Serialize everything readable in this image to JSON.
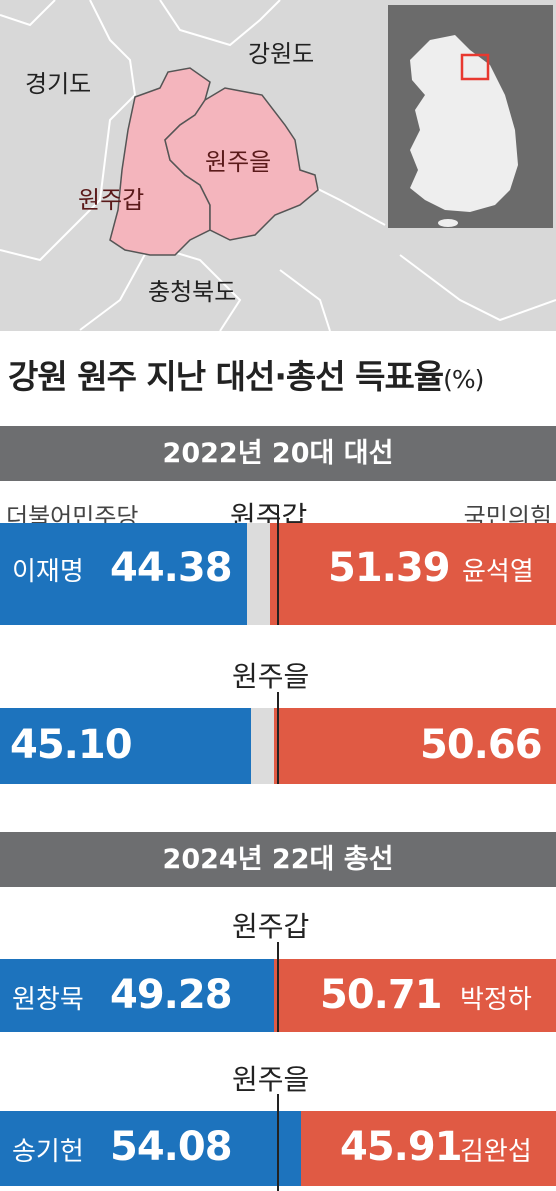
{
  "map": {
    "regions": {
      "gyeonggi": "경기도",
      "gangwon": "강원도",
      "chungbuk": "충청북도"
    },
    "districts": {
      "gap": "원주갑",
      "eul": "원주을"
    },
    "colors": {
      "background": "#d8d8d8",
      "district_fill": "#f4b5bd",
      "inset": "#6b6b6b",
      "marker": "#e8382f"
    }
  },
  "title": {
    "main": "강원 원주 지난 대선·총선 득표율",
    "unit": "(%)"
  },
  "sections": [
    {
      "banner": "2022년 20대 대선",
      "left_party": "더불어민주당",
      "right_party": "국민의힘"
    },
    {
      "banner": "2024년 22대 총선"
    }
  ],
  "colors": {
    "democratic": "#1d73bd",
    "ppp": "#e05a44",
    "other": "#dcdcdc",
    "banner": "#6d6e70"
  },
  "chart_data": {
    "type": "bar",
    "orientation": "horizontal-stacked",
    "title": "강원 원주 지난 대선·총선 득표율(%)",
    "xlim": [
      0,
      100
    ],
    "rows": [
      {
        "election": "2022년 20대 대선",
        "district": "원주갑",
        "left_candidate": "이재명",
        "left": 44.38,
        "right_candidate": "윤석열",
        "right": 51.39,
        "left_label": "44.38",
        "right_label": "51.39"
      },
      {
        "election": "2022년 20대 대선",
        "district": "원주을",
        "left_candidate": "",
        "left": 45.1,
        "right_candidate": "",
        "right": 50.66,
        "left_label": "45.10",
        "right_label": "50.66"
      },
      {
        "election": "2024년 22대 총선",
        "district": "원주갑",
        "left_candidate": "원창묵",
        "left": 49.28,
        "right_candidate": "박정하",
        "right": 50.71,
        "left_label": "49.28",
        "right_label": "50.71"
      },
      {
        "election": "2024년 22대 총선",
        "district": "원주을",
        "left_candidate": "송기헌",
        "left": 54.08,
        "right_candidate": "김완섭",
        "right": 45.91,
        "left_label": "54.08",
        "right_label": "45.91"
      }
    ]
  }
}
